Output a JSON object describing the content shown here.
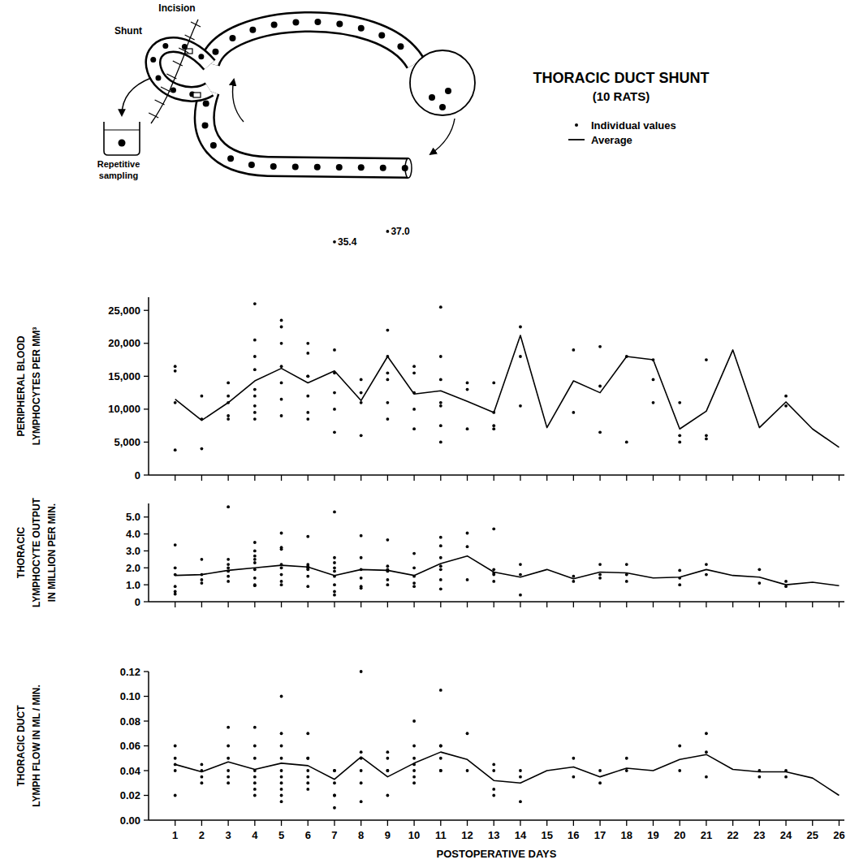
{
  "diagram": {
    "incision": "Incision",
    "shunt": "Shunt",
    "sampling": [
      "Repetitive",
      "sampling"
    ]
  },
  "chart_data": [
    {
      "type": "line",
      "title": "THORACIC DUCT SHUNT",
      "subtitle": "(10 RATS)",
      "legend": "top right",
      "ylabel": [
        "PERIPHERAL BLOOD",
        "LYMPHOCYTES PER MM³"
      ],
      "tick_labels": "y",
      "grid": false,
      "xlim": [
        0,
        26.2
      ],
      "xticks": [
        1,
        2,
        3,
        4,
        5,
        6,
        7,
        8,
        9,
        10,
        11,
        12,
        13,
        14,
        15,
        16,
        17,
        18,
        19,
        20,
        21,
        22,
        23,
        24,
        25,
        26
      ],
      "ylim": [
        0,
        27000
      ],
      "yticks": [
        0,
        {
          "value": 5000,
          "label": "5,000"
        },
        {
          "value": 10000,
          "label": "10,000"
        },
        {
          "value": 15000,
          "label": "15,000"
        },
        {
          "value": 20000,
          "label": "20,000"
        },
        {
          "value": 25000,
          "label": "25,000"
        }
      ],
      "annotations": [
        {
          "text": "35.4",
          "x": 7,
          "y": 35400
        },
        {
          "text": "37.0",
          "x": 9,
          "y": 37000
        }
      ],
      "series": [
        {
          "name": "Individual values",
          "type": "scatter",
          "marker": "dot",
          "color": "#000000",
          "x": [
            1,
            1,
            1,
            1,
            2,
            2,
            2,
            3,
            3,
            3,
            3,
            3,
            4,
            4,
            4,
            4,
            4,
            4,
            4,
            4,
            4,
            5,
            5,
            5,
            5,
            5,
            5,
            5,
            6,
            6,
            6,
            6,
            6,
            6,
            6,
            7,
            7,
            7,
            7,
            7,
            8,
            8,
            8,
            8,
            9,
            9,
            9,
            9,
            9,
            9,
            10,
            10,
            10,
            10,
            10,
            11,
            11,
            11,
            11,
            11,
            11,
            11,
            12,
            12,
            12,
            13,
            13,
            13,
            13,
            14,
            14,
            14,
            16,
            16,
            17,
            17,
            17,
            18,
            18,
            19,
            19,
            19,
            20,
            20,
            20,
            21,
            21,
            21,
            24,
            24
          ],
          "values": [
            16500,
            15800,
            11000,
            3800,
            12000,
            8500,
            4000,
            14000,
            12000,
            11000,
            9000,
            8500,
            26000,
            20500,
            18000,
            16000,
            13000,
            12000,
            10500,
            9500,
            8500,
            23500,
            22500,
            20000,
            16500,
            14000,
            11500,
            9000,
            20000,
            18500,
            15000,
            15000,
            12000,
            9500,
            8500,
            19000,
            15500,
            12500,
            10000,
            6500,
            14500,
            12500,
            11000,
            6000,
            22000,
            18000,
            15500,
            14500,
            11000,
            8500,
            16500,
            15500,
            12500,
            10000,
            7000,
            25500,
            18000,
            14500,
            11000,
            10500,
            7500,
            5000,
            14000,
            13000,
            7000,
            14000,
            9500,
            7500,
            7000,
            22500,
            18000,
            10500,
            19000,
            9500,
            19500,
            13500,
            6500,
            18000,
            5000,
            17500,
            14500,
            11000,
            11000,
            6000,
            5000,
            17500,
            6000,
            5500,
            12000,
            10500
          ]
        },
        {
          "name": "Average",
          "type": "line",
          "line_style": "solid",
          "color": "#000000",
          "x": [
            1,
            2,
            3,
            4,
            5,
            6,
            7,
            8,
            9,
            10,
            11,
            12,
            13,
            14,
            15,
            16,
            17,
            18,
            19,
            20,
            21,
            22,
            23,
            24,
            25,
            26
          ],
          "values": [
            11500,
            8300,
            11000,
            14300,
            16200,
            14000,
            15800,
            11300,
            18000,
            12300,
            12800,
            11200,
            9500,
            21200,
            7200,
            14300,
            12500,
            18000,
            17500,
            7000,
            9700,
            19000,
            7200,
            11100,
            7000,
            4200
          ]
        }
      ]
    },
    {
      "type": "line",
      "ylabel": [
        "THORACIC",
        "LYMPHOCYTE OUTPUT",
        "IN MILLION PER MIN."
      ],
      "tick_labels": "y",
      "grid": false,
      "xlim": [
        0,
        26.2
      ],
      "xticks": [
        1,
        2,
        3,
        4,
        5,
        6,
        7,
        8,
        9,
        10,
        11,
        12,
        13,
        14,
        15,
        16,
        17,
        18,
        19,
        20,
        21,
        22,
        23,
        24,
        25,
        26
      ],
      "ylim": [
        0,
        5.8
      ],
      "yticks": [
        0,
        {
          "value": 1,
          "label": "1.0"
        },
        {
          "value": 2,
          "label": "2.0"
        },
        {
          "value": 3,
          "label": "3.0"
        },
        {
          "value": 4,
          "label": "4.0"
        },
        {
          "value": 5,
          "label": "5.0"
        }
      ],
      "series": [
        {
          "type": "scatter",
          "marker": "dot",
          "color": "#000000",
          "x": [
            1,
            1,
            1,
            1,
            1,
            1,
            2,
            2,
            2,
            2,
            3,
            3,
            3,
            3,
            3,
            3,
            3,
            4,
            4,
            4,
            4,
            4,
            4,
            4,
            4,
            4,
            5,
            5,
            5,
            5,
            5,
            5,
            5,
            5,
            6,
            6,
            6,
            6,
            6,
            6,
            6,
            7,
            7,
            7,
            7,
            7,
            7,
            7,
            7,
            7,
            8,
            8,
            8,
            8,
            8,
            8,
            9,
            9,
            9,
            9,
            9,
            9,
            10,
            10,
            10,
            10,
            10,
            11,
            11,
            11,
            11,
            11,
            11,
            11,
            12,
            12,
            12,
            13,
            13,
            13,
            13,
            13,
            14,
            14,
            14,
            16,
            16,
            17,
            17,
            17,
            18,
            18,
            18,
            20,
            20,
            20,
            21,
            21,
            23,
            23,
            24,
            24
          ],
          "values": [
            3.35,
            2.0,
            1.6,
            0.9,
            0.6,
            0.45,
            2.5,
            1.6,
            1.3,
            1.1,
            5.6,
            2.5,
            2.2,
            2.0,
            1.8,
            1.5,
            1.2,
            3.5,
            3.0,
            2.7,
            2.5,
            2.3,
            1.9,
            1.4,
            1.0,
            0.95,
            4.05,
            3.2,
            3.1,
            2.2,
            2.0,
            1.6,
            1.2,
            1.0,
            3.85,
            2.2,
            2.1,
            2.0,
            1.9,
            1.5,
            0.9,
            5.3,
            2.6,
            2.3,
            2.0,
            1.8,
            1.5,
            1.0,
            0.6,
            0.4,
            3.9,
            2.6,
            1.9,
            1.4,
            0.9,
            0.8,
            3.65,
            2.1,
            1.9,
            1.8,
            1.3,
            1.0,
            2.85,
            2.0,
            1.5,
            1.1,
            0.9,
            3.8,
            3.3,
            2.6,
            2.1,
            1.9,
            1.3,
            0.75,
            4.05,
            3.25,
            1.3,
            4.3,
            1.9,
            1.7,
            1.6,
            1.2,
            2.2,
            1.6,
            0.4,
            1.5,
            1.2,
            2.2,
            1.6,
            1.4,
            2.2,
            1.6,
            1.2,
            1.85,
            1.4,
            1.0,
            2.2,
            1.6,
            1.9,
            1.1,
            1.2,
            0.9
          ]
        },
        {
          "type": "line",
          "line_style": "solid",
          "color": "#000000",
          "x": [
            1,
            2,
            3,
            4,
            5,
            6,
            7,
            8,
            9,
            10,
            11,
            12,
            13,
            14,
            15,
            16,
            17,
            18,
            19,
            20,
            21,
            22,
            23,
            24,
            25,
            26
          ],
          "values": [
            1.55,
            1.6,
            1.85,
            2.0,
            2.15,
            2.05,
            1.55,
            1.9,
            1.85,
            1.55,
            2.25,
            2.7,
            1.75,
            1.45,
            1.9,
            1.35,
            1.75,
            1.7,
            1.4,
            1.45,
            1.9,
            1.55,
            1.45,
            1.0,
            1.15,
            0.95
          ]
        }
      ]
    },
    {
      "type": "line",
      "ylabel": [
        "THORACIC DUCT",
        "LYMPH FLOW IN ML / MIN."
      ],
      "xlabel": "POSTOPERATIVE DAYS",
      "tick_labels": true,
      "grid": false,
      "xlim": [
        0,
        26.2
      ],
      "xticks": [
        1,
        2,
        3,
        4,
        5,
        6,
        7,
        8,
        9,
        10,
        11,
        12,
        13,
        14,
        15,
        16,
        17,
        18,
        19,
        20,
        21,
        22,
        23,
        24,
        25,
        26
      ],
      "ylim": [
        0,
        0.12
      ],
      "yticks": [
        {
          "value": 0,
          "label": "0.00"
        },
        0.02,
        0.04,
        0.06,
        0.08,
        {
          "value": 0.1,
          "label": "0.10"
        },
        0.12
      ],
      "series": [
        {
          "type": "scatter",
          "marker": "dot",
          "color": "#000000",
          "x": [
            1,
            1,
            1,
            1,
            1,
            2,
            2,
            2,
            2,
            3,
            3,
            3,
            3,
            3,
            3,
            4,
            4,
            4,
            4,
            4,
            4,
            4,
            4,
            5,
            5,
            5,
            5,
            5,
            5,
            5,
            5,
            5,
            5,
            6,
            6,
            6,
            6,
            6,
            6,
            6,
            7,
            7,
            7,
            7,
            7,
            7,
            8,
            8,
            8,
            8,
            8,
            8,
            9,
            9,
            9,
            9,
            9,
            10,
            10,
            10,
            10,
            10,
            10,
            10,
            11,
            11,
            11,
            11,
            11,
            11,
            12,
            12,
            13,
            13,
            13,
            13,
            14,
            14,
            14,
            16,
            16,
            17,
            17,
            18,
            18,
            20,
            20,
            21,
            21,
            21,
            23,
            23,
            24,
            24
          ],
          "values": [
            0.06,
            0.05,
            0.045,
            0.04,
            0.02,
            0.045,
            0.04,
            0.035,
            0.03,
            0.075,
            0.06,
            0.05,
            0.04,
            0.035,
            0.03,
            0.075,
            0.06,
            0.05,
            0.04,
            0.035,
            0.03,
            0.025,
            0.02,
            0.1,
            0.07,
            0.06,
            0.05,
            0.04,
            0.035,
            0.03,
            0.025,
            0.02,
            0.015,
            0.07,
            0.05,
            0.05,
            0.04,
            0.035,
            0.03,
            0.025,
            0.04,
            0.04,
            0.03,
            0.02,
            0.02,
            0.01,
            0.12,
            0.055,
            0.05,
            0.04,
            0.03,
            0.015,
            0.055,
            0.05,
            0.04,
            0.04,
            0.02,
            0.08,
            0.06,
            0.05,
            0.045,
            0.04,
            0.035,
            0.03,
            0.105,
            0.06,
            0.06,
            0.05,
            0.04,
            0.04,
            0.07,
            0.04,
            0.045,
            0.04,
            0.025,
            0.02,
            0.04,
            0.035,
            0.015,
            0.05,
            0.035,
            0.04,
            0.03,
            0.05,
            0.04,
            0.06,
            0.04,
            0.07,
            0.055,
            0.035,
            0.04,
            0.035,
            0.04,
            0.035
          ]
        },
        {
          "type": "line",
          "line_style": "solid",
          "color": "#000000",
          "x": [
            1,
            2,
            3,
            4,
            5,
            6,
            7,
            8,
            9,
            10,
            11,
            12,
            13,
            14,
            15,
            16,
            17,
            18,
            19,
            20,
            21,
            22,
            23,
            24,
            25,
            26
          ],
          "values": [
            0.045,
            0.039,
            0.047,
            0.041,
            0.046,
            0.044,
            0.033,
            0.051,
            0.035,
            0.046,
            0.055,
            0.049,
            0.032,
            0.03,
            0.04,
            0.043,
            0.035,
            0.042,
            0.04,
            0.049,
            0.053,
            0.041,
            0.039,
            0.039,
            0.034,
            0.02
          ]
        }
      ]
    }
  ]
}
